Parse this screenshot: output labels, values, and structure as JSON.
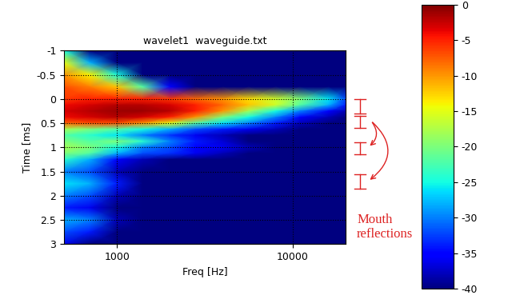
{
  "chart_data": {
    "type": "heatmap",
    "title": "wavelet1  waveguide.txt",
    "x_label": "Freq [Hz]",
    "y_label": "Time [ms]",
    "log": "x",
    "grid": true,
    "color": "jet",
    "xlim": [
      500,
      20000
    ],
    "xticks": [
      1000,
      10000
    ],
    "ylim": [
      3,
      -1
    ],
    "yticks": [
      -1,
      -0.5,
      0,
      0.5,
      1,
      1.5,
      2,
      2.5,
      3
    ],
    "x": [
      500,
      700,
      1000,
      1400,
      2000,
      2800,
      4000,
      5600,
      8000,
      11000,
      16000,
      20000
    ],
    "y": [
      -1,
      -0.75,
      -0.5,
      -0.25,
      0,
      0.125,
      0.25,
      0.375,
      0.5,
      0.625,
      0.75,
      0.875,
      1,
      1.125,
      1.25,
      1.5,
      1.75,
      2,
      2.25,
      2.5,
      2.75,
      3
    ],
    "cells": [
      [
        -25,
        -40,
        -40,
        -40,
        -40,
        -40,
        -40,
        -40,
        -40,
        -40,
        -40,
        -40
      ],
      [
        -15,
        -28,
        -40,
        -40,
        -40,
        -40,
        -40,
        -40,
        -40,
        -40,
        -40,
        -40
      ],
      [
        -10,
        -14,
        -25,
        -40,
        -40,
        -40,
        -40,
        -40,
        -40,
        -40,
        -40,
        -40
      ],
      [
        -7,
        -9,
        -12,
        -22,
        -35,
        -40,
        -40,
        -40,
        -40,
        -40,
        -40,
        -40
      ],
      [
        -6,
        -5,
        -5,
        -5,
        -6,
        -8,
        -10,
        -13,
        -16,
        -20,
        -26,
        -32
      ],
      [
        -4,
        -3,
        -2,
        -2,
        -3,
        -5,
        -8,
        -12,
        -16,
        -22,
        -28,
        -34
      ],
      [
        -3,
        -2,
        -1,
        -1,
        -2,
        -5,
        -10,
        -18,
        -25,
        -30,
        -35,
        -38
      ],
      [
        -4,
        -3,
        -2,
        -3,
        -5,
        -10,
        -20,
        -25,
        -30,
        -35,
        -38,
        -40
      ],
      [
        -8,
        -7,
        -7,
        -10,
        -15,
        -22,
        -26,
        -30,
        -34,
        -38,
        -40,
        -40
      ],
      [
        -18,
        -20,
        -22,
        -25,
        -28,
        -32,
        -34,
        -36,
        -38,
        -40,
        -40,
        -40
      ],
      [
        -22,
        -24,
        -26,
        -30,
        -33,
        -36,
        -38,
        -40,
        -40,
        -40,
        -40,
        -40
      ],
      [
        -20,
        -22,
        -20,
        -24,
        -30,
        -34,
        -37,
        -40,
        -40,
        -40,
        -40,
        -40
      ],
      [
        -18,
        -20,
        -25,
        -30,
        -32,
        -35,
        -36,
        -38,
        -40,
        -40,
        -40,
        -40
      ],
      [
        -20,
        -22,
        -28,
        -32,
        -33,
        -36,
        -38,
        -40,
        -40,
        -40,
        -40,
        -40
      ],
      [
        -24,
        -28,
        -35,
        -38,
        -40,
        -40,
        -40,
        -40,
        -40,
        -40,
        -40,
        -40
      ],
      [
        -30,
        -32,
        -38,
        -40,
        -40,
        -40,
        -40,
        -40,
        -40,
        -40,
        -40,
        -40
      ],
      [
        -26,
        -28,
        -34,
        -40,
        -40,
        -40,
        -40,
        -40,
        -40,
        -40,
        -40,
        -40
      ],
      [
        -30,
        -32,
        -38,
        -40,
        -40,
        -40,
        -40,
        -40,
        -40,
        -40,
        -40,
        -40
      ],
      [
        -34,
        -36,
        -40,
        -40,
        -40,
        -40,
        -40,
        -40,
        -40,
        -40,
        -40,
        -40
      ],
      [
        -28,
        -30,
        -38,
        -40,
        -40,
        -40,
        -40,
        -40,
        -40,
        -40,
        -40,
        -40
      ],
      [
        -32,
        -34,
        -40,
        -40,
        -40,
        -40,
        -40,
        -40,
        -40,
        -40,
        -40,
        -40
      ],
      [
        -36,
        -40,
        -40,
        -40,
        -40,
        -40,
        -40,
        -40,
        -40,
        -40,
        -40,
        -40
      ]
    ],
    "colorbar": {
      "range": [
        -40,
        0
      ],
      "ticks": [
        0,
        -5,
        -10,
        -15,
        -20,
        -25,
        -30,
        -35,
        -40
      ]
    },
    "annotation": "Mouth\nreflections"
  }
}
